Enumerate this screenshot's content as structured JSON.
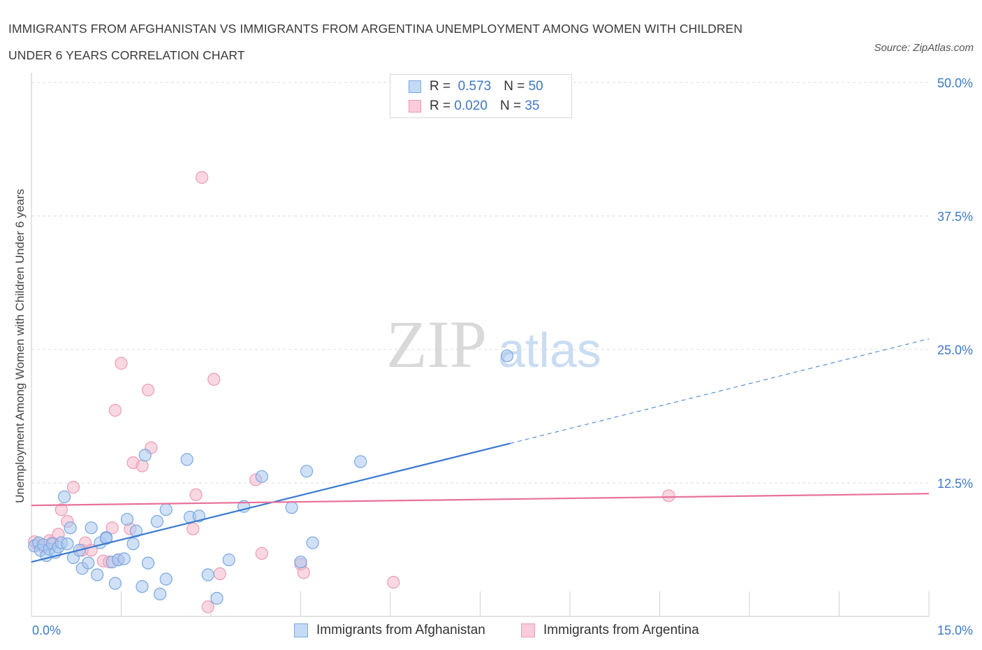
{
  "title_line1": "IMMIGRANTS FROM AFGHANISTAN VS IMMIGRANTS FROM ARGENTINA UNEMPLOYMENT AMONG WOMEN WITH CHILDREN",
  "title_line2": "UNDER 6 YEARS CORRELATION CHART",
  "source": "Source: ZipAtlas.com",
  "watermark_zip": "ZIP",
  "watermark_atlas": "atlas",
  "legend": {
    "r_label": "R =",
    "n_label": "N =",
    "afghanistan": {
      "r": "0.573",
      "n": "50"
    },
    "argentina": {
      "r": "0.020",
      "n": "35"
    }
  },
  "colors": {
    "afghanistan_fill": "#a9c8f0",
    "afghanistan_stroke": "#7aa7e0",
    "afghanistan_line": "#3a7ad0",
    "argentina_fill": "#f5b8cb",
    "argentina_stroke": "#ec9ab5",
    "argentina_line": "#e8719a",
    "tick_label": "#3d78c8",
    "grid": "#dedede"
  },
  "chart_data": {
    "type": "scatter",
    "title": "IMMIGRANTS FROM AFGHANISTAN VS IMMIGRANTS FROM ARGENTINA UNEMPLOYMENT AMONG WOMEN WITH CHILDREN UNDER 6 YEARS CORRELATION CHART",
    "xlabel": "",
    "ylabel": "Unemployment Among Women with Children Under 6 years",
    "xlim": [
      0,
      15
    ],
    "ylim": [
      0,
      50
    ],
    "x_tick_labels": [
      "0.0%",
      "15.0%"
    ],
    "y_tick_values": [
      12.5,
      25,
      37.5,
      50
    ],
    "y_tick_labels": [
      "12.5%",
      "25.0%",
      "37.5%",
      "50.0%"
    ],
    "grid": true,
    "legend_position": "top-center",
    "series": [
      {
        "name": "Immigrants from Afghanistan",
        "trend": {
          "x": [
            0,
            8
          ],
          "y": [
            5.1,
            16.2
          ],
          "dashed_to": [
            15,
            26.0
          ]
        },
        "points": [
          [
            0.05,
            6.6
          ],
          [
            0.12,
            6.9
          ],
          [
            0.15,
            6.2
          ],
          [
            0.2,
            6.7
          ],
          [
            0.25,
            5.7
          ],
          [
            0.3,
            6.3
          ],
          [
            0.35,
            6.8
          ],
          [
            0.4,
            6.0
          ],
          [
            0.45,
            6.5
          ],
          [
            0.5,
            6.9
          ],
          [
            0.55,
            11.2
          ],
          [
            0.65,
            8.3
          ],
          [
            0.7,
            5.5
          ],
          [
            0.8,
            6.2
          ],
          [
            0.85,
            4.5
          ],
          [
            0.95,
            5.0
          ],
          [
            1.0,
            8.3
          ],
          [
            1.1,
            3.9
          ],
          [
            1.15,
            6.9
          ],
          [
            1.25,
            7.4
          ],
          [
            1.35,
            5.1
          ],
          [
            1.4,
            3.1
          ],
          [
            1.45,
            5.3
          ],
          [
            1.55,
            5.4
          ],
          [
            1.6,
            9.1
          ],
          [
            1.7,
            6.8
          ],
          [
            1.75,
            8.0
          ],
          [
            1.85,
            2.8
          ],
          [
            1.9,
            15.1
          ],
          [
            1.95,
            5.0
          ],
          [
            2.1,
            8.9
          ],
          [
            2.15,
            2.1
          ],
          [
            2.25,
            3.5
          ],
          [
            2.25,
            10.0
          ],
          [
            2.6,
            14.7
          ],
          [
            2.65,
            9.3
          ],
          [
            2.8,
            9.4
          ],
          [
            2.95,
            3.9
          ],
          [
            3.1,
            1.7
          ],
          [
            3.3,
            5.3
          ],
          [
            3.55,
            10.3
          ],
          [
            3.85,
            13.1
          ],
          [
            4.35,
            10.2
          ],
          [
            4.5,
            5.1
          ],
          [
            4.6,
            13.6
          ],
          [
            4.7,
            6.9
          ],
          [
            5.5,
            14.5
          ],
          [
            7.95,
            24.4
          ],
          [
            1.25,
            7.3
          ],
          [
            0.6,
            6.8
          ]
        ]
      },
      {
        "name": "Immigrants from Argentina",
        "trend": {
          "x": [
            0,
            15
          ],
          "y": [
            10.4,
            11.5
          ]
        },
        "points": [
          [
            0.05,
            7.0
          ],
          [
            0.1,
            6.7
          ],
          [
            0.2,
            6.5
          ],
          [
            0.3,
            7.1
          ],
          [
            0.35,
            6.9
          ],
          [
            0.45,
            7.7
          ],
          [
            0.5,
            10.0
          ],
          [
            0.6,
            8.9
          ],
          [
            0.7,
            12.1
          ],
          [
            0.85,
            6.2
          ],
          [
            0.9,
            6.9
          ],
          [
            1.0,
            6.2
          ],
          [
            1.2,
            5.2
          ],
          [
            1.3,
            5.1
          ],
          [
            1.35,
            8.3
          ],
          [
            1.4,
            19.3
          ],
          [
            1.45,
            5.3
          ],
          [
            1.5,
            23.7
          ],
          [
            1.65,
            8.2
          ],
          [
            1.7,
            14.4
          ],
          [
            1.85,
            14.1
          ],
          [
            1.95,
            21.2
          ],
          [
            2.0,
            15.8
          ],
          [
            2.7,
            8.2
          ],
          [
            2.75,
            11.4
          ],
          [
            2.85,
            41.1
          ],
          [
            2.95,
            0.9
          ],
          [
            3.05,
            22.2
          ],
          [
            3.15,
            4.0
          ],
          [
            3.75,
            12.8
          ],
          [
            3.85,
            5.9
          ],
          [
            4.5,
            4.9
          ],
          [
            4.55,
            4.1
          ],
          [
            6.05,
            3.2
          ],
          [
            10.65,
            11.3
          ]
        ]
      }
    ]
  },
  "bottom_legend": {
    "afghanistan_label": "Immigrants from Afghanistan",
    "argentina_label": "Immigrants from Argentina"
  }
}
